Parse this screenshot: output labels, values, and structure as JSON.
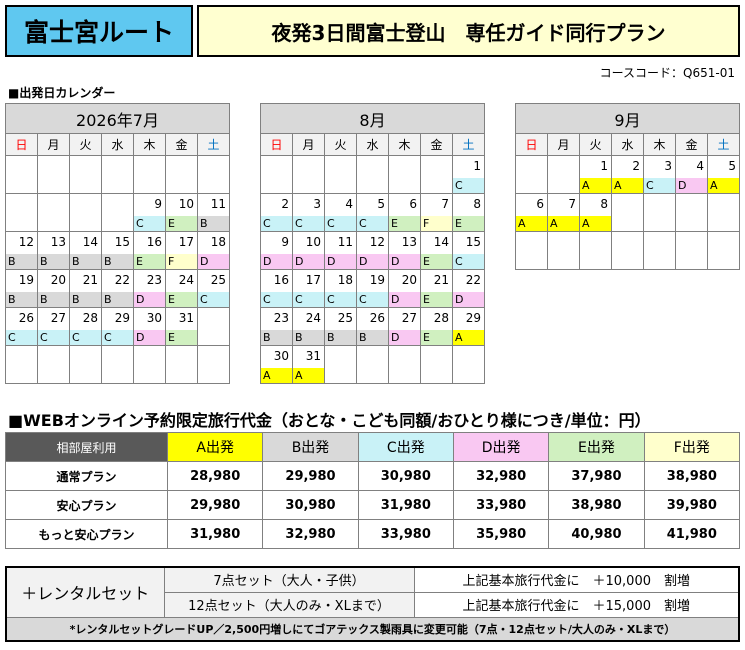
{
  "header": {
    "route": "富士宮ルート",
    "plan_title": "夜発3日間富士登山　専任ガイド同行プラン",
    "course_code": "コースコード：Q651-01"
  },
  "calendar_heading": "■出発日カレンダー",
  "weekdays": [
    "日",
    "月",
    "火",
    "水",
    "木",
    "金",
    "土"
  ],
  "calendars": [
    {
      "title": "2026年7月",
      "weeks": [
        [
          {
            "d": ""
          },
          {
            "d": ""
          },
          {
            "d": ""
          },
          {
            "d": ""
          },
          {
            "d": ""
          },
          {
            "d": ""
          },
          {
            "d": ""
          }
        ],
        [
          {
            "d": ""
          },
          {
            "d": ""
          },
          {
            "d": ""
          },
          {
            "d": ""
          },
          {
            "d": "9",
            "g": "C"
          },
          {
            "d": "10",
            "g": "E"
          },
          {
            "d": "11",
            "g": "B"
          }
        ],
        [
          {
            "d": "12",
            "g": "B"
          },
          {
            "d": "13",
            "g": "B"
          },
          {
            "d": "14",
            "g": "B"
          },
          {
            "d": "15",
            "g": "B"
          },
          {
            "d": "16",
            "g": "E"
          },
          {
            "d": "17",
            "g": "F"
          },
          {
            "d": "18",
            "g": "D"
          }
        ],
        [
          {
            "d": "19",
            "g": "B"
          },
          {
            "d": "20",
            "g": "B"
          },
          {
            "d": "21",
            "g": "B"
          },
          {
            "d": "22",
            "g": "B"
          },
          {
            "d": "23",
            "g": "D"
          },
          {
            "d": "24",
            "g": "E"
          },
          {
            "d": "25",
            "g": "C"
          }
        ],
        [
          {
            "d": "26",
            "g": "C"
          },
          {
            "d": "27",
            "g": "C"
          },
          {
            "d": "28",
            "g": "C"
          },
          {
            "d": "29",
            "g": "C"
          },
          {
            "d": "30",
            "g": "D"
          },
          {
            "d": "31",
            "g": "E"
          },
          {
            "d": ""
          }
        ],
        [
          {
            "d": ""
          },
          {
            "d": ""
          },
          {
            "d": ""
          },
          {
            "d": ""
          },
          {
            "d": ""
          },
          {
            "d": ""
          },
          {
            "d": ""
          }
        ]
      ]
    },
    {
      "title": "8月",
      "weeks": [
        [
          {
            "d": ""
          },
          {
            "d": ""
          },
          {
            "d": ""
          },
          {
            "d": ""
          },
          {
            "d": ""
          },
          {
            "d": ""
          },
          {
            "d": "1",
            "g": "C"
          }
        ],
        [
          {
            "d": "2",
            "g": "C"
          },
          {
            "d": "3",
            "g": "C"
          },
          {
            "d": "4",
            "g": "C"
          },
          {
            "d": "5",
            "g": "C"
          },
          {
            "d": "6",
            "g": "E"
          },
          {
            "d": "7",
            "g": "F"
          },
          {
            "d": "8",
            "g": "E"
          }
        ],
        [
          {
            "d": "9",
            "g": "D"
          },
          {
            "d": "10",
            "g": "D"
          },
          {
            "d": "11",
            "g": "D"
          },
          {
            "d": "12",
            "g": "D"
          },
          {
            "d": "13",
            "g": "D"
          },
          {
            "d": "14",
            "g": "E"
          },
          {
            "d": "15",
            "g": "C"
          }
        ],
        [
          {
            "d": "16",
            "g": "C"
          },
          {
            "d": "17",
            "g": "C"
          },
          {
            "d": "18",
            "g": "C"
          },
          {
            "d": "19",
            "g": "C"
          },
          {
            "d": "20",
            "g": "D"
          },
          {
            "d": "21",
            "g": "E"
          },
          {
            "d": "22",
            "g": "D"
          }
        ],
        [
          {
            "d": "23",
            "g": "B"
          },
          {
            "d": "24",
            "g": "B"
          },
          {
            "d": "25",
            "g": "B"
          },
          {
            "d": "26",
            "g": "B"
          },
          {
            "d": "27",
            "g": "D"
          },
          {
            "d": "28",
            "g": "E"
          },
          {
            "d": "29",
            "g": "A"
          }
        ],
        [
          {
            "d": "30",
            "g": "A"
          },
          {
            "d": "31",
            "g": "A"
          },
          {
            "d": ""
          },
          {
            "d": ""
          },
          {
            "d": ""
          },
          {
            "d": ""
          },
          {
            "d": ""
          }
        ]
      ]
    },
    {
      "title": "9月",
      "weeks": [
        [
          {
            "d": ""
          },
          {
            "d": ""
          },
          {
            "d": "1",
            "g": "A"
          },
          {
            "d": "2",
            "g": "A"
          },
          {
            "d": "3",
            "g": "C"
          },
          {
            "d": "4",
            "g": "D"
          },
          {
            "d": "5",
            "g": "A"
          }
        ],
        [
          {
            "d": "6",
            "g": "A"
          },
          {
            "d": "7",
            "g": "A"
          },
          {
            "d": "8",
            "g": "A"
          },
          {
            "d": ""
          },
          {
            "d": ""
          },
          {
            "d": ""
          },
          {
            "d": ""
          }
        ],
        [
          {
            "d": ""
          },
          {
            "d": ""
          },
          {
            "d": ""
          },
          {
            "d": ""
          },
          {
            "d": ""
          },
          {
            "d": ""
          },
          {
            "d": ""
          }
        ]
      ]
    }
  ],
  "grade_colors": {
    "A": "#ffff00",
    "B": "#d9d9d9",
    "C": "#c9f2f7",
    "D": "#f9c8f2",
    "E": "#d0f0c0",
    "F": "#ffffcc"
  },
  "price_heading": "■WEBオンライン予約限定旅行代金（おとな・こども同額/おひとり様につき/単位：円）",
  "price_table": {
    "corner": "相部屋利用",
    "columns": [
      {
        "label": "A出発",
        "grade": "A"
      },
      {
        "label": "B出発",
        "grade": "B"
      },
      {
        "label": "C出発",
        "grade": "C"
      },
      {
        "label": "D出発",
        "grade": "D"
      },
      {
        "label": "E出発",
        "grade": "E"
      },
      {
        "label": "F出発",
        "grade": "F"
      }
    ],
    "rows": [
      {
        "label": "通常プラン",
        "values": [
          "28,980",
          "29,980",
          "30,980",
          "32,980",
          "37,980",
          "38,980"
        ]
      },
      {
        "label": "安心プラン",
        "values": [
          "29,980",
          "30,980",
          "31,980",
          "33,980",
          "38,980",
          "39,980"
        ]
      },
      {
        "label": "もっと安心プラン",
        "values": [
          "31,980",
          "32,980",
          "33,980",
          "35,980",
          "40,980",
          "41,980"
        ]
      }
    ]
  },
  "rental": {
    "name": "＋レンタルセット",
    "options": [
      {
        "set": "7点セット（大人・子供）",
        "price": "上記基本旅行代金に　＋10,000　割増"
      },
      {
        "set": "12点セット（大人のみ・XLまで）",
        "price": "上記基本旅行代金に　＋15,000　割増"
      }
    ],
    "note": "*レンタルセットグレードUP／2,500円増しにてゴアテックス製雨具に変更可能（7点・12点セット/大人のみ・XLまで）"
  }
}
